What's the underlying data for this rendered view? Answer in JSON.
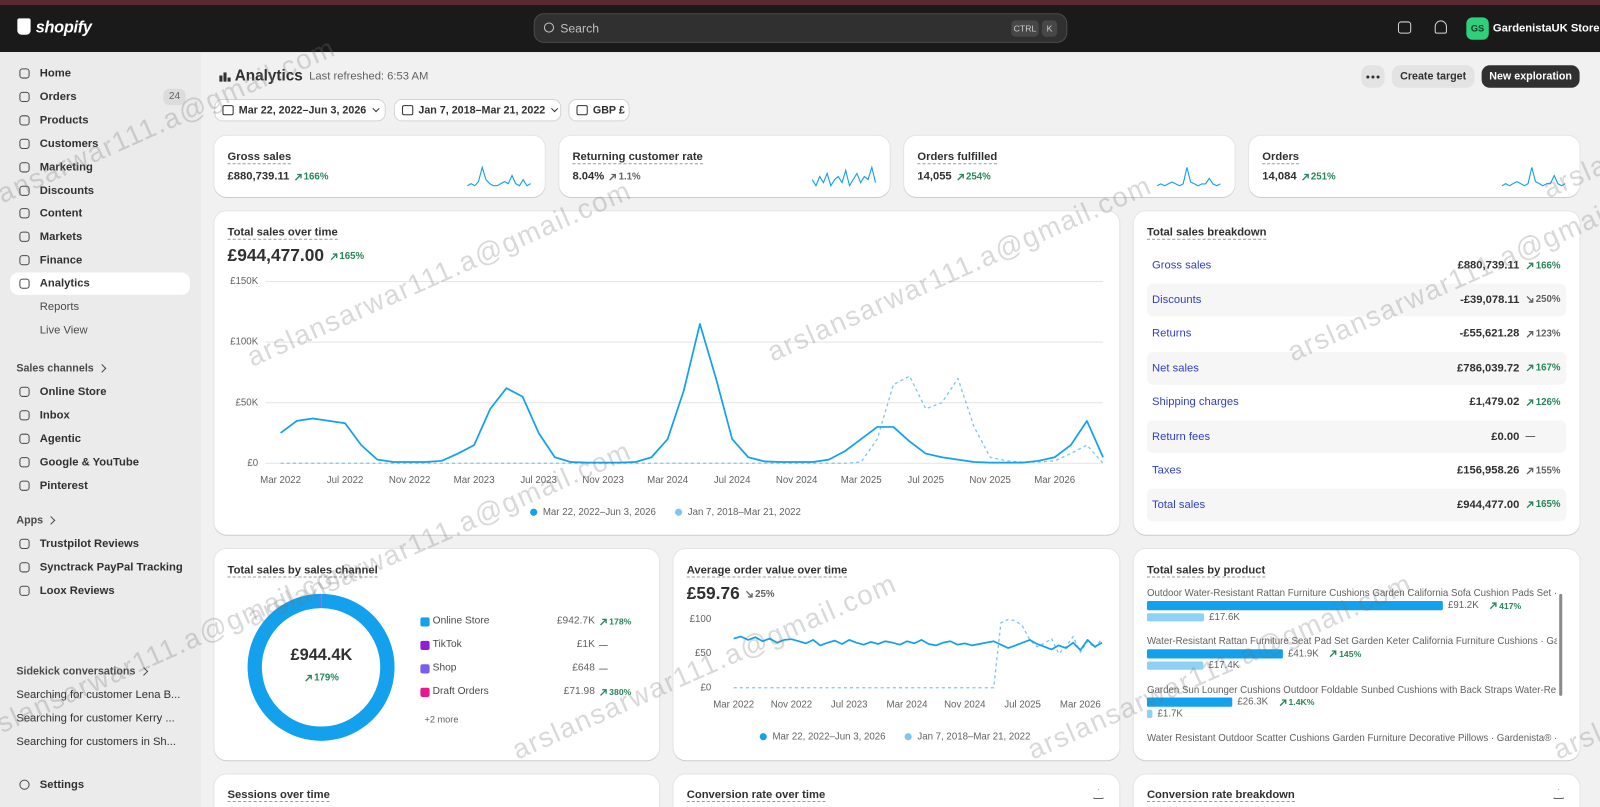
{
  "watermark": "arslansarwar111.a@gmail.com",
  "topbar": {
    "logo": "shopify",
    "search": "Search",
    "shortcut": [
      "CTRL",
      "K"
    ],
    "store_initials": "GS",
    "store_name": "GardenistaUK Store"
  },
  "sidebar": {
    "nav": [
      {
        "label": "Home"
      },
      {
        "label": "Orders",
        "badge": "24"
      },
      {
        "label": "Products"
      },
      {
        "label": "Customers"
      },
      {
        "label": "Marketing"
      },
      {
        "label": "Discounts"
      },
      {
        "label": "Content"
      },
      {
        "label": "Markets"
      },
      {
        "label": "Finance"
      },
      {
        "label": "Analytics",
        "active": true,
        "sub": [
          "Reports",
          "Live View"
        ]
      }
    ],
    "sections": [
      {
        "title": "Sales channels",
        "items": [
          "Online Store",
          "Inbox",
          "Agentic",
          "Google & YouTube",
          "Pinterest"
        ]
      },
      {
        "title": "Apps",
        "items": [
          "Trustpilot Reviews",
          "Synctrack PayPal Tracking",
          "Loox Reviews"
        ]
      },
      {
        "title": "Sidekick conversations",
        "items": [
          "Searching for customer Lena B...",
          "Searching for customer Kerry ...",
          "Searching for customers in Sh..."
        ]
      }
    ],
    "settings": "Settings"
  },
  "header": {
    "title": "Analytics",
    "refreshed": "Last refreshed: 6:53 AM",
    "actions": [
      "Create target",
      "New exploration"
    ],
    "filters": [
      "Mar 22, 2022–Jun 3, 2026",
      "Jan 7, 2018–Mar 21, 2022",
      "GBP £"
    ]
  },
  "metrics": [
    {
      "title": "Gross sales",
      "value": "£880,739.11",
      "change": "166%",
      "trend": "up",
      "tone": "positive",
      "sparkline": [
        3,
        4,
        3,
        5,
        12,
        6,
        4,
        3,
        3,
        4,
        5,
        4,
        8,
        4,
        3,
        6,
        3,
        4
      ]
    },
    {
      "title": "Returning customer rate",
      "value": "8.04%",
      "change": "1.1%",
      "trend": "up",
      "tone": "neutral",
      "sparkline": [
        8,
        6,
        9,
        7,
        10,
        6,
        8,
        9,
        7,
        11,
        6,
        8,
        10,
        7,
        9,
        8,
        12,
        7
      ]
    },
    {
      "title": "Orders fulfilled",
      "value": "14,055",
      "change": "254%",
      "trend": "up",
      "tone": "positive",
      "sparkline": [
        2,
        3,
        2,
        3,
        4,
        3,
        2,
        3,
        12,
        4,
        3,
        2,
        3,
        3,
        6,
        3,
        2,
        3
      ]
    },
    {
      "title": "Orders",
      "value": "14,084",
      "change": "251%",
      "trend": "up",
      "tone": "positive",
      "sparkline": [
        2,
        3,
        2,
        3,
        4,
        3,
        2,
        3,
        11,
        4,
        3,
        2,
        3,
        3,
        7,
        3,
        2,
        3
      ]
    }
  ],
  "breakdown": {
    "title": "Total sales breakdown",
    "rows": [
      {
        "label": "Gross sales",
        "value": "£880,739.11",
        "change": "166%",
        "trend": "up",
        "tone": "positive"
      },
      {
        "label": "Discounts",
        "value": "-£39,078.11",
        "change": "250%",
        "trend": "down",
        "tone": "neutral"
      },
      {
        "label": "Returns",
        "value": "-£55,621.28",
        "change": "123%",
        "trend": "up",
        "tone": "neutral"
      },
      {
        "label": "Net sales",
        "value": "£786,039.72",
        "change": "167%",
        "trend": "up",
        "tone": "positive"
      },
      {
        "label": "Shipping charges",
        "value": "£1,479.02",
        "change": "126%",
        "trend": "up",
        "tone": "positive"
      },
      {
        "label": "Return fees",
        "value": "£0.00",
        "change": "—",
        "trend": "none",
        "tone": "neutral"
      },
      {
        "label": "Taxes",
        "value": "£156,958.26",
        "change": "155%",
        "trend": "up",
        "tone": "neutral"
      },
      {
        "label": "Total sales",
        "value": "£944,477.00",
        "change": "165%",
        "trend": "up",
        "tone": "positive"
      }
    ]
  },
  "chart_data": [
    {
      "type": "line",
      "title": "Total sales over time",
      "value": "£944,477.00",
      "change": "165%",
      "trend": "up",
      "tone": "positive",
      "categories": [
        "Mar 2022",
        null,
        null,
        null,
        "Jul 2022",
        null,
        null,
        null,
        "Nov 2022",
        null,
        null,
        null,
        "Mar 2023",
        null,
        null,
        null,
        "Jul 2023",
        null,
        null,
        null,
        "Nov 2023",
        null,
        null,
        null,
        "Mar 2024",
        null,
        null,
        null,
        "Jul 2024",
        null,
        null,
        null,
        "Nov 2024",
        null,
        null,
        null,
        "Mar 2025",
        null,
        null,
        null,
        "Jul 2025",
        null,
        null,
        null,
        "Nov 2025",
        null,
        null,
        null,
        "Mar 2026",
        null,
        null,
        null
      ],
      "series": [
        {
          "name": "Mar 22, 2022–Jun 3, 2026",
          "color": "#13a0ec",
          "values": [
            25000,
            35000,
            37000,
            35000,
            33000,
            15000,
            3000,
            1000,
            1000,
            1000,
            2000,
            8000,
            15000,
            45000,
            62000,
            55000,
            25000,
            5000,
            1000,
            500,
            500,
            500,
            1000,
            5000,
            20000,
            60000,
            115000,
            70000,
            20000,
            5000,
            1500,
            1000,
            1000,
            1000,
            3000,
            10000,
            20000,
            30000,
            30000,
            18000,
            8000,
            5000,
            3000,
            1000,
            500,
            500,
            500,
            2000,
            5000,
            15000,
            35000,
            5000
          ]
        },
        {
          "name": "Jan 7, 2018–Mar 21, 2022",
          "color": "#7cc6f0",
          "style": "dashed",
          "values": [
            0,
            0,
            0,
            0,
            0,
            0,
            0,
            0,
            0,
            0,
            0,
            0,
            0,
            0,
            0,
            0,
            0,
            0,
            0,
            0,
            0,
            0,
            0,
            0,
            0,
            0,
            0,
            0,
            0,
            0,
            0,
            0,
            0,
            0,
            0,
            0,
            1000,
            20000,
            65000,
            72000,
            45000,
            50000,
            70000,
            30000,
            5000,
            2000,
            1000,
            1000,
            2000,
            8000,
            15000,
            0
          ]
        }
      ],
      "ylim": [
        0,
        150000
      ],
      "yticks": [
        {
          "value": 0,
          "label": "£0"
        },
        {
          "value": 50000,
          "label": "£50K"
        },
        {
          "value": 100000,
          "label": "£100K"
        },
        {
          "value": 150000,
          "label": "£150K"
        }
      ],
      "grid": true
    },
    {
      "type": "donut",
      "title": "Total sales by sales channel",
      "center_value": "£944.4K",
      "center_change": "179%",
      "center_trend": "up",
      "center_tone": "positive",
      "categories": [
        "Online Store",
        "TikTok",
        "Shop",
        "Draft Orders"
      ],
      "values": [
        942700,
        1000,
        648,
        71.98
      ],
      "value_labels": [
        "£942.7K",
        "£1K",
        "£648",
        "£71.98"
      ],
      "colors": [
        "#13a0ec",
        "#8f1fd6",
        "#7a5cf0",
        "#e8178f"
      ],
      "changes": [
        "178%",
        "—",
        "—",
        "380%"
      ],
      "trends": [
        "up",
        "none",
        "none",
        "up"
      ],
      "tones": [
        "positive",
        "neutral",
        "neutral",
        "positive"
      ],
      "more": "+2 more"
    },
    {
      "type": "line",
      "title": "Average order value over time",
      "value": "£59.76",
      "change": "25%",
      "trend": "down",
      "tone": "neutral",
      "categories": [
        "Mar 2022",
        null,
        null,
        null,
        null,
        null,
        null,
        null,
        "Nov 2022",
        null,
        null,
        null,
        null,
        null,
        null,
        null,
        "Jul 2023",
        null,
        null,
        null,
        null,
        null,
        null,
        null,
        "Mar 2024",
        null,
        null,
        null,
        null,
        null,
        null,
        null,
        "Nov 2024",
        null,
        null,
        null,
        null,
        null,
        null,
        null,
        "Jul 2025",
        null,
        null,
        null,
        null,
        null,
        null,
        null,
        "Mar 2026",
        null,
        null,
        null
      ],
      "series": [
        {
          "name": "Mar 22, 2022–Jun 3, 2026",
          "color": "#13a0ec",
          "values": [
            72,
            75,
            70,
            74,
            68,
            72,
            66,
            70,
            71,
            68,
            65,
            70,
            62,
            66,
            69,
            64,
            70,
            66,
            63,
            67,
            64,
            68,
            66,
            63,
            68,
            65,
            70,
            64,
            62,
            66,
            68,
            63,
            65,
            62,
            64,
            66,
            68,
            63,
            58,
            62,
            66,
            70,
            64,
            60,
            56,
            62,
            58,
            66,
            55,
            70,
            60,
            66
          ]
        },
        {
          "name": "Jan 7, 2018–Mar 21, 2022",
          "color": "#7cc6f0",
          "style": "dashed",
          "values": [
            0,
            0,
            0,
            0,
            0,
            0,
            0,
            0,
            0,
            0,
            0,
            0,
            0,
            0,
            0,
            0,
            0,
            0,
            0,
            0,
            0,
            0,
            0,
            0,
            0,
            0,
            0,
            0,
            0,
            0,
            0,
            0,
            0,
            0,
            0,
            0,
            0,
            95,
            100,
            98,
            90,
            70,
            60,
            65,
            72,
            50,
            60,
            75,
            52,
            68,
            58,
            72
          ]
        }
      ],
      "ylim": [
        0,
        100
      ],
      "yticks": [
        {
          "value": 0,
          "label": "£0"
        },
        {
          "value": 50,
          "label": "£50"
        },
        {
          "value": 100,
          "label": "£100"
        }
      ],
      "grid": false
    },
    {
      "type": "bar",
      "title": "Total sales by product",
      "categories": [
        "Outdoor Water-Resistant Rattan Furniture Cushions Garden California Sofa Cushion Pads Set · ...",
        "Water-Resistant Rattan Furniture Seat Pad Set Garden Keter California Furniture Cushions · Ga...",
        "Garden Sun Lounger Cushions Outdoor Foldable Sunbed Cushions with Back Straps Water-Re...",
        "Water Resistant Outdoor Scatter Cushions Garden Furniture Decorative Pillows · Gardenista® · ..."
      ],
      "series": [
        {
          "color": "#13a0ec",
          "values": [
            91200,
            41900,
            26300,
            null
          ],
          "value_labels": [
            "£91.2K",
            "£41.9K",
            "£26.3K",
            null
          ]
        },
        {
          "color": "#8fd1f5",
          "values": [
            17600,
            17400,
            1700,
            null
          ],
          "value_labels": [
            "£17.6K",
            "£17.4K",
            "£1.7K",
            null
          ]
        }
      ],
      "changes": [
        "417%",
        "145%",
        "1.4K%",
        null
      ],
      "trend": "up",
      "tone": "positive"
    }
  ],
  "bottom_cards": [
    "Sessions over time",
    "Conversion rate over time",
    "Conversion rate breakdown"
  ]
}
